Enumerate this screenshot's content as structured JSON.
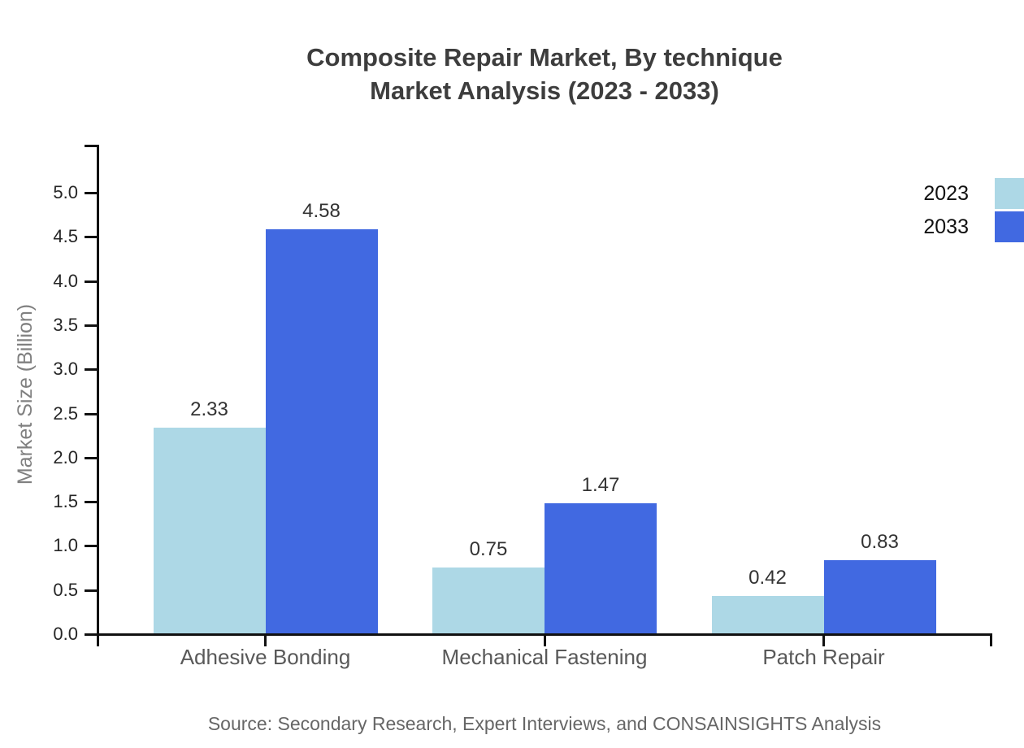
{
  "title": {
    "line1": "Composite Repair Market, By technique",
    "line2": "Market Analysis (2023 - 2033)"
  },
  "ylabel": "Market Size (Billion)",
  "source": "Source: Secondary Research, Expert Interviews, and CONSAINSIGHTS Analysis",
  "legend": {
    "items": [
      {
        "label": "2023",
        "color": "#ADD8E6"
      },
      {
        "label": "2033",
        "color": "#4169E1"
      }
    ]
  },
  "colors": {
    "axis": "#111111",
    "bar_2023": "#ADD8E6",
    "bar_2033": "#4169E1",
    "title": "#3d3d3d",
    "tick_label": "#262626",
    "category_label": "#595959",
    "value_label": "#333333",
    "axis_title": "#808080",
    "source": "#666666"
  },
  "chart_data": {
    "type": "bar",
    "title": "Composite Repair Market, By technique Market Analysis (2023 - 2033)",
    "categories": [
      "Adhesive Bonding",
      "Mechanical Fastening",
      "Patch Repair"
    ],
    "series": [
      {
        "name": "2023",
        "color": "#ADD8E6",
        "values": [
          2.33,
          0.75,
          0.42
        ]
      },
      {
        "name": "2033",
        "color": "#4169E1",
        "values": [
          4.58,
          1.47,
          0.83
        ]
      }
    ],
    "xlabel": "",
    "ylabel": "Market Size (Billion)",
    "ylim": [
      0,
      5.5
    ],
    "yticks": [
      0.0,
      0.5,
      1.0,
      1.5,
      2.0,
      2.5,
      3.0,
      3.5,
      4.0,
      4.5,
      5.0
    ],
    "ytick_format": "one_decimal",
    "value_label_format": "two_decimals",
    "grid": false,
    "legend_position": "top-right",
    "source_note": "Source: Secondary Research, Expert Interviews, and CONSAINSIGHTS Analysis"
  }
}
